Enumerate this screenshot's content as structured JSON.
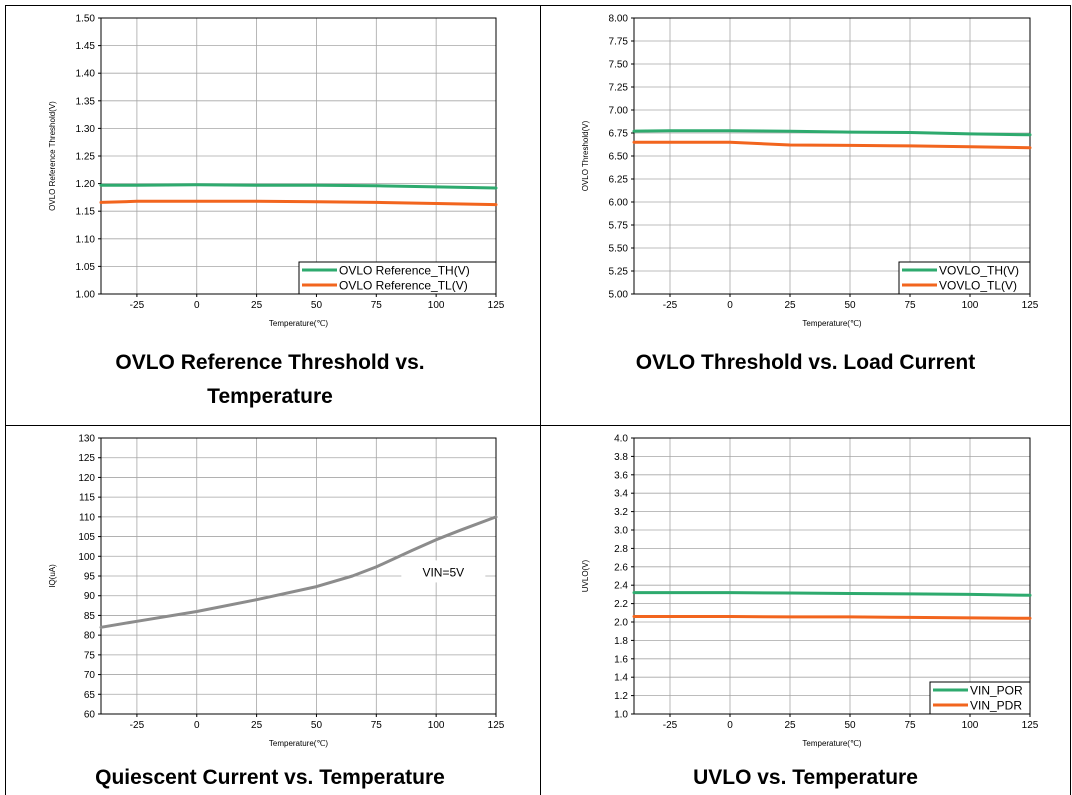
{
  "chart_data": [
    {
      "type": "line",
      "caption": [
        "OVLO Reference Threshold vs.",
        "Temperature"
      ],
      "xlabel": "Temperature(℃)",
      "ylabel": "OVLO Reference Threshold(V)",
      "xlim": [
        -40,
        125
      ],
      "ylim": [
        1.0,
        1.5
      ],
      "xticks": [
        -25,
        0,
        25,
        50,
        75,
        100,
        125
      ],
      "yticks": [
        1.0,
        1.05,
        1.1,
        1.15,
        1.2,
        1.25,
        1.3,
        1.35,
        1.4,
        1.45,
        1.5
      ],
      "ytick_decimals": 2,
      "grid": true,
      "legend_position": "bottom-right",
      "series": [
        {
          "name": "OVLO Reference_TH(V)",
          "color": "#2eaa6e",
          "x": [
            -40,
            -25,
            0,
            25,
            50,
            75,
            100,
            125
          ],
          "y": [
            1.197,
            1.197,
            1.198,
            1.197,
            1.197,
            1.196,
            1.194,
            1.192
          ]
        },
        {
          "name": "OVLO Reference_TL(V)",
          "color": "#f2651e",
          "x": [
            -40,
            -25,
            0,
            25,
            50,
            75,
            100,
            125
          ],
          "y": [
            1.166,
            1.168,
            1.168,
            1.168,
            1.167,
            1.166,
            1.164,
            1.162
          ]
        }
      ]
    },
    {
      "type": "line",
      "caption": [
        "OVLO Threshold vs. Load Current"
      ],
      "xlabel": "Temperature(℃)",
      "ylabel": "OVLO Threshold(V)",
      "xlim": [
        -40,
        125
      ],
      "ylim": [
        5.0,
        8.0
      ],
      "xticks": [
        -25,
        0,
        25,
        50,
        75,
        100,
        125
      ],
      "yticks": [
        5.0,
        5.25,
        5.5,
        5.75,
        6.0,
        6.25,
        6.5,
        6.75,
        7.0,
        7.25,
        7.5,
        7.75,
        8.0
      ],
      "ytick_decimals": 2,
      "grid": true,
      "legend_position": "bottom-right",
      "series": [
        {
          "name": "VOVLO_TH(V)",
          "color": "#2eaa6e",
          "x": [
            -40,
            -25,
            0,
            25,
            50,
            75,
            100,
            125
          ],
          "y": [
            6.77,
            6.775,
            6.775,
            6.77,
            6.76,
            6.755,
            6.74,
            6.73
          ]
        },
        {
          "name": "VOVLO_TL(V)",
          "color": "#f2651e",
          "x": [
            -40,
            -25,
            0,
            25,
            50,
            75,
            100,
            125
          ],
          "y": [
            6.65,
            6.65,
            6.65,
            6.62,
            6.615,
            6.61,
            6.6,
            6.59
          ]
        }
      ]
    },
    {
      "type": "line",
      "caption": [
        "Quiescent Current vs. Temperature"
      ],
      "xlabel": "Temperature(℃)",
      "ylabel": "IQ(uA)",
      "xlim": [
        -40,
        125
      ],
      "ylim": [
        60,
        130
      ],
      "xticks": [
        -25,
        0,
        25,
        50,
        75,
        100,
        125
      ],
      "yticks": [
        60,
        65,
        70,
        75,
        80,
        85,
        90,
        95,
        100,
        105,
        110,
        115,
        120,
        125,
        130
      ],
      "ytick_decimals": 0,
      "grid": true,
      "legend_position": "inline",
      "annotation": {
        "text": "VIN=5V",
        "x": 103,
        "y": 95.4
      },
      "series": [
        {
          "name": "VIN=5V",
          "color": "#8c8c8c",
          "x": [
            -40,
            -25,
            0,
            25,
            50,
            65,
            75,
            90,
            100,
            110,
            125
          ],
          "y": [
            82,
            83.5,
            86,
            89,
            92.3,
            95,
            97.3,
            101.5,
            104.2,
            106.6,
            110
          ]
        }
      ]
    },
    {
      "type": "line",
      "caption": [
        "UVLO vs. Temperature"
      ],
      "xlabel": "Temperature(℃)",
      "ylabel": "UVLO(V)",
      "xlim": [
        -40,
        125
      ],
      "ylim": [
        1.0,
        4.0
      ],
      "xticks": [
        -25,
        0,
        25,
        50,
        75,
        100,
        125
      ],
      "yticks": [
        1.0,
        1.2,
        1.4,
        1.6,
        1.8,
        2.0,
        2.2,
        2.4,
        2.6,
        2.8,
        3.0,
        3.2,
        3.4,
        3.6,
        3.8,
        4.0
      ],
      "ytick_decimals": 1,
      "grid": true,
      "legend_position": "bottom-right",
      "series": [
        {
          "name": "VIN_POR",
          "color": "#2eaa6e",
          "x": [
            -40,
            -25,
            0,
            25,
            50,
            75,
            100,
            125
          ],
          "y": [
            2.32,
            2.32,
            2.32,
            2.315,
            2.31,
            2.305,
            2.3,
            2.29
          ]
        },
        {
          "name": "VIN_PDR",
          "color": "#f2651e",
          "x": [
            -40,
            -25,
            0,
            25,
            50,
            75,
            100,
            125
          ],
          "y": [
            2.06,
            2.06,
            2.06,
            2.055,
            2.055,
            2.05,
            2.045,
            2.04
          ]
        }
      ]
    }
  ]
}
